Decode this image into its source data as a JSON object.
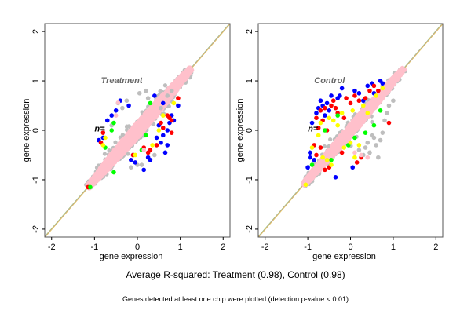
{
  "chart_data": [
    {
      "type": "scatter",
      "panel": "left",
      "title": "Treatment",
      "annotation": "n=",
      "xlabel": "gene expression",
      "ylabel": "gene expression",
      "xlim": [
        -2.16,
        2.16
      ],
      "ylim": [
        -2.16,
        2.16
      ],
      "xticks": [
        -2,
        -1,
        0,
        1,
        2
      ],
      "yticks": [
        -2,
        -1,
        0,
        1,
        2
      ],
      "grid": false,
      "reference_lines": {
        "slope": 1,
        "intercept": 0,
        "colors": [
          "#90d050",
          "#b090e0",
          "#e0c060"
        ]
      },
      "core_band": {
        "color": "#ffc0cb",
        "halo_color": "#bebebe",
        "x_range": [
          -1.15,
          1.25
        ],
        "half_width": 0.22
      },
      "series": [
        {
          "name": "blue",
          "color": "#0000ff",
          "points": [
            [
              -0.5,
              0.4
            ],
            [
              -0.9,
              -0.2
            ],
            [
              -0.6,
              0.3
            ],
            [
              -0.2,
              0.5
            ],
            [
              -0.4,
              0.6
            ],
            [
              0.5,
              0.1
            ],
            [
              0.6,
              -0.1
            ],
            [
              0.7,
              0.0
            ],
            [
              0.8,
              0.3
            ],
            [
              0.45,
              -0.15
            ],
            [
              0.55,
              -0.25
            ],
            [
              0.65,
              -0.45
            ],
            [
              0.3,
              -0.6
            ],
            [
              0.15,
              -0.8
            ],
            [
              -0.05,
              -0.65
            ],
            [
              0.25,
              -0.55
            ],
            [
              -0.1,
              -0.5
            ],
            [
              0.95,
              0.5
            ],
            [
              0.85,
              0.2
            ],
            [
              0.6,
              0.55
            ],
            [
              0.4,
              0.7
            ],
            [
              -0.7,
              0.2
            ],
            [
              -0.8,
              -0.15
            ],
            [
              0.7,
              -0.3
            ],
            [
              0.75,
              0.15
            ],
            [
              -0.15,
              -0.6
            ]
          ]
        },
        {
          "name": "red",
          "color": "#ff0000",
          "points": [
            [
              0.7,
              0.3
            ],
            [
              0.75,
              0.25
            ],
            [
              0.8,
              0.2
            ],
            [
              0.6,
              0.05
            ],
            [
              0.45,
              -0.3
            ],
            [
              0.3,
              -0.4
            ],
            [
              0.25,
              -0.45
            ],
            [
              -0.85,
              -0.25
            ],
            [
              -0.8,
              -0.05
            ],
            [
              -0.1,
              -0.5
            ],
            [
              0.15,
              -0.35
            ],
            [
              0.95,
              0.65
            ],
            [
              0.55,
              0.15
            ],
            [
              -1.15,
              -1.15
            ],
            [
              0.8,
              -0.05
            ]
          ]
        },
        {
          "name": "yellow",
          "color": "#ffff00",
          "points": [
            [
              0.6,
              0.3
            ],
            [
              -0.8,
              -0.3
            ],
            [
              0.5,
              0.0
            ],
            [
              0.85,
              0.55
            ],
            [
              -0.05,
              -0.5
            ],
            [
              0.35,
              -0.3
            ],
            [
              -0.75,
              -0.15
            ]
          ]
        },
        {
          "name": "green",
          "color": "#00ff00",
          "points": [
            [
              -0.55,
              0.15
            ],
            [
              -0.6,
              0.0
            ],
            [
              0.1,
              -0.4
            ],
            [
              -0.75,
              -0.35
            ],
            [
              -1.1,
              -1.15
            ],
            [
              -0.55,
              -0.85
            ],
            [
              0.2,
              -0.1
            ],
            [
              0.3,
              0.55
            ]
          ]
        },
        {
          "name": "gray",
          "color": "#bebebe",
          "points": [
            [
              -0.45,
              0.55
            ],
            [
              -0.25,
              0.6
            ],
            [
              0.25,
              0.65
            ],
            [
              0.05,
              0.75
            ],
            [
              -0.35,
              0.45
            ],
            [
              0.1,
              -0.7
            ],
            [
              -0.15,
              -0.75
            ],
            [
              -0.6,
              0.1
            ],
            [
              0.55,
              0.45
            ],
            [
              0.2,
              0.8
            ],
            [
              -0.8,
              0.0
            ],
            [
              0.0,
              -0.7
            ],
            [
              0.4,
              -0.5
            ],
            [
              0.7,
              0.7
            ],
            [
              0.8,
              0.8
            ]
          ]
        },
        {
          "name": "pink",
          "color": "#ffc0cb",
          "points": [
            [
              -0.45,
              0.56
            ],
            [
              -0.5,
              0.3
            ],
            [
              0.15,
              -0.4
            ]
          ]
        }
      ]
    },
    {
      "type": "scatter",
      "panel": "right",
      "title": "Control",
      "annotation": "n=",
      "xlabel": "gene expression",
      "ylabel": "gene expression",
      "xlim": [
        -2.16,
        2.16
      ],
      "ylim": [
        -2.16,
        2.16
      ],
      "xticks": [
        -2,
        -1,
        0,
        1,
        2
      ],
      "yticks": [
        -2,
        -1,
        0,
        1,
        2
      ],
      "grid": false,
      "reference_lines": {
        "slope": 1,
        "intercept": 0,
        "colors": [
          "#90d050",
          "#b090e0",
          "#e0c060"
        ]
      },
      "core_band": {
        "color": "#ffc0cb",
        "halo_color": "#bebebe",
        "x_range": [
          -1.1,
          1.25
        ],
        "half_width": 0.18
      },
      "series": [
        {
          "name": "blue",
          "color": "#0000ff",
          "points": [
            [
              -0.7,
              0.6
            ],
            [
              -0.65,
              0.5
            ],
            [
              -0.55,
              0.55
            ],
            [
              -0.45,
              0.7
            ],
            [
              -0.3,
              0.65
            ],
            [
              -0.2,
              0.85
            ],
            [
              0.1,
              0.8
            ],
            [
              0.2,
              0.75
            ],
            [
              0.4,
              0.9
            ],
            [
              0.5,
              0.95
            ],
            [
              0.55,
              0.75
            ],
            [
              0.7,
              1.0
            ],
            [
              0.75,
              0.95
            ],
            [
              -0.75,
              0.45
            ],
            [
              -0.8,
              0.35
            ],
            [
              -0.6,
              0.3
            ],
            [
              -0.9,
              0.15
            ],
            [
              -0.95,
              -0.45
            ],
            [
              -0.95,
              -0.55
            ],
            [
              -0.85,
              -0.6
            ],
            [
              -1.0,
              -0.75
            ],
            [
              -0.35,
              -0.95
            ],
            [
              0.05,
              -0.75
            ],
            [
              -0.25,
              0.7
            ],
            [
              0.3,
              0.6
            ],
            [
              -0.5,
              0.4
            ]
          ]
        },
        {
          "name": "red",
          "color": "#ff0000",
          "points": [
            [
              -0.7,
              0.4
            ],
            [
              -0.65,
              0.2
            ],
            [
              -0.6,
              0.45
            ],
            [
              -0.45,
              0.5
            ],
            [
              -0.35,
              0.45
            ],
            [
              -0.3,
              0.35
            ],
            [
              -0.1,
              0.65
            ],
            [
              0.0,
              0.55
            ],
            [
              0.1,
              0.7
            ],
            [
              0.2,
              0.6
            ],
            [
              0.35,
              0.65
            ],
            [
              0.45,
              0.8
            ],
            [
              0.55,
              0.9
            ],
            [
              0.65,
              0.8
            ],
            [
              -0.8,
              0.25
            ],
            [
              -0.75,
              0.05
            ],
            [
              -0.55,
              0.0
            ],
            [
              -0.85,
              -0.3
            ],
            [
              -0.8,
              -0.5
            ],
            [
              -0.7,
              -0.35
            ],
            [
              0.25,
              -0.55
            ],
            [
              0.15,
              -0.65
            ],
            [
              -0.2,
              -0.45
            ],
            [
              -0.5,
              -0.75
            ],
            [
              -0.6,
              -0.8
            ],
            [
              0.9,
              0.15
            ],
            [
              -0.4,
              0.6
            ],
            [
              -0.15,
              0.25
            ]
          ]
        },
        {
          "name": "yellow",
          "color": "#ffff00",
          "points": [
            [
              -0.5,
              0.25
            ],
            [
              -0.4,
              0.2
            ],
            [
              -0.2,
              0.35
            ],
            [
              0.05,
              0.4
            ],
            [
              0.3,
              0.5
            ],
            [
              0.6,
              0.7
            ],
            [
              0.75,
              0.85
            ],
            [
              -0.75,
              -0.1
            ],
            [
              -0.7,
              0.15
            ],
            [
              -0.9,
              -0.35
            ],
            [
              -0.65,
              -0.55
            ],
            [
              0.0,
              -0.25
            ],
            [
              0.1,
              -0.55
            ],
            [
              -0.15,
              -0.35
            ],
            [
              -0.45,
              -0.7
            ],
            [
              -0.55,
              -0.6
            ],
            [
              -1.05,
              -1.1
            ],
            [
              0.2,
              -0.3
            ],
            [
              0.4,
              0.35
            ],
            [
              -0.3,
              0.1
            ]
          ]
        },
        {
          "name": "green",
          "color": "#00ff00",
          "points": [
            [
              -0.6,
              0.0
            ],
            [
              -0.3,
              0.3
            ],
            [
              0.35,
              -0.05
            ],
            [
              0.55,
              0.1
            ],
            [
              -0.05,
              -0.3
            ],
            [
              -0.45,
              -0.6
            ],
            [
              0.1,
              -0.15
            ],
            [
              -0.9,
              -0.7
            ],
            [
              0.7,
              0.4
            ]
          ]
        },
        {
          "name": "gray",
          "color": "#bebebe",
          "points": [
            [
              0.5,
              -0.1
            ],
            [
              0.6,
              -0.3
            ],
            [
              0.7,
              -0.2
            ],
            [
              0.45,
              -0.45
            ],
            [
              0.35,
              -0.35
            ],
            [
              0.3,
              -0.5
            ],
            [
              0.2,
              -0.4
            ],
            [
              0.65,
              -0.55
            ],
            [
              0.8,
              0.2
            ],
            [
              0.85,
              0.35
            ],
            [
              0.9,
              0.5
            ],
            [
              1.0,
              0.6
            ],
            [
              0.55,
              -0.15
            ],
            [
              0.4,
              -0.25
            ],
            [
              0.75,
              -0.05
            ]
          ]
        },
        {
          "name": "pink",
          "color": "#ffc0cb",
          "points": [
            [
              0.4,
              -0.55
            ],
            [
              0.25,
              -0.5
            ],
            [
              0.1,
              -0.45
            ]
          ]
        }
      ]
    }
  ],
  "captions": {
    "main": "Average R-squared: Treatment (0.98), Control (0.98)",
    "sub": "Genes detected at least one chip were plotted (detection p-value < 0.01)"
  }
}
